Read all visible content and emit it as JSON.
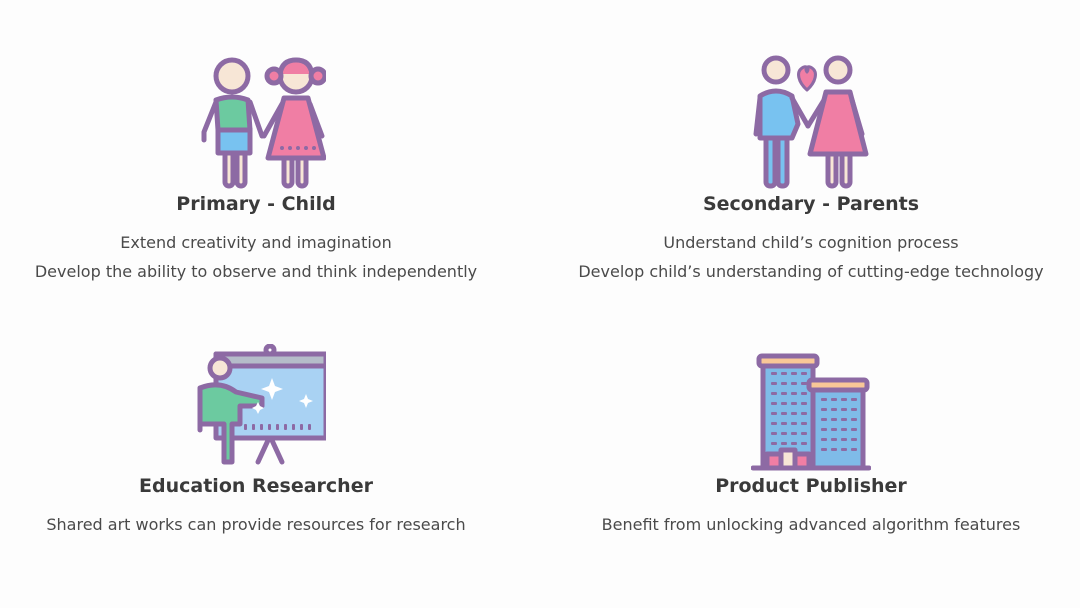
{
  "cards": [
    {
      "title": "Primary - Child",
      "icon": "children-holding-hands-icon",
      "lines": [
        "Extend creativity and imagination",
        "Develop the ability to observe and think independently"
      ]
    },
    {
      "title": "Secondary - Parents",
      "icon": "couple-with-heart-icon",
      "lines": [
        "Understand child’s cognition process",
        "Develop child’s understanding of cutting-edge technology"
      ]
    },
    {
      "title": "Education Researcher",
      "icon": "presenter-whiteboard-icon",
      "lines": [
        "Shared art works can provide resources for research"
      ]
    },
    {
      "title": "Product Publisher",
      "icon": "office-buildings-icon",
      "lines": [
        "Benefit from unlocking advanced algorithm features"
      ]
    }
  ],
  "colors": {
    "outline": "#8d6aa4",
    "skin": "#f7e6d6",
    "green": "#6ccaa0",
    "blue": "#78c2f0",
    "pink": "#f07ea4",
    "board_blue": "#a9d2f3",
    "building_blue": "#7fbbe8",
    "roof_orange": "#f9c797"
  }
}
